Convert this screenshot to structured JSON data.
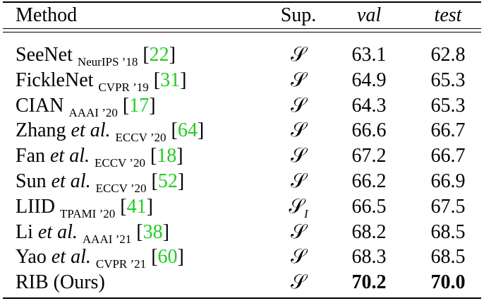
{
  "table": {
    "header": [
      "Method",
      "Sup.",
      "val",
      "test"
    ],
    "cite_brackets": [
      "[",
      "]"
    ],
    "rows": [
      {
        "name": "SeeNet",
        "venue": "NeurIPS ’18",
        "ref": "22",
        "sup": "𝒮",
        "val": "63.1",
        "test": "62.8"
      },
      {
        "name": "FickleNet",
        "venue": "CVPR ’19",
        "ref": "31",
        "sup": "𝒮",
        "val": "64.9",
        "test": "65.3"
      },
      {
        "name": "CIAN",
        "venue": "AAAI ’20",
        "ref": "17",
        "sup": "𝒮",
        "val": "64.3",
        "test": "65.3"
      },
      {
        "name": "Zhang",
        "etal": "et al.",
        "venue": "ECCV ’20",
        "ref": "64",
        "sup": "𝒮",
        "val": "66.6",
        "test": "66.7"
      },
      {
        "name": "Fan",
        "etal": "et al.",
        "venue": "ECCV ’20",
        "ref": "18",
        "sup": "𝒮",
        "val": "67.2",
        "test": "66.7"
      },
      {
        "name": "Sun",
        "etal": "et al.",
        "venue": "ECCV ’20",
        "ref": "52",
        "sup": "𝒮",
        "val": "66.2",
        "test": "66.9"
      },
      {
        "name": "LIID",
        "venue": "TPAMI ’20",
        "ref": "41",
        "sup": "𝒮",
        "sup_sub": "I",
        "val": "66.5",
        "test": "67.5"
      },
      {
        "name": "Li",
        "etal": "et al.",
        "venue": "AAAI ’21",
        "ref": "38",
        "sup": "𝒮",
        "val": "68.2",
        "test": "68.5"
      },
      {
        "name": "Yao",
        "etal": "et al.",
        "venue": "CVPR ’21",
        "ref": "60",
        "sup": "𝒮",
        "val": "68.3",
        "test": "68.5"
      },
      {
        "name": "RIB (Ours)",
        "sup": "𝒮",
        "val": "70.2",
        "test": "70.0",
        "bold": true
      }
    ]
  }
}
